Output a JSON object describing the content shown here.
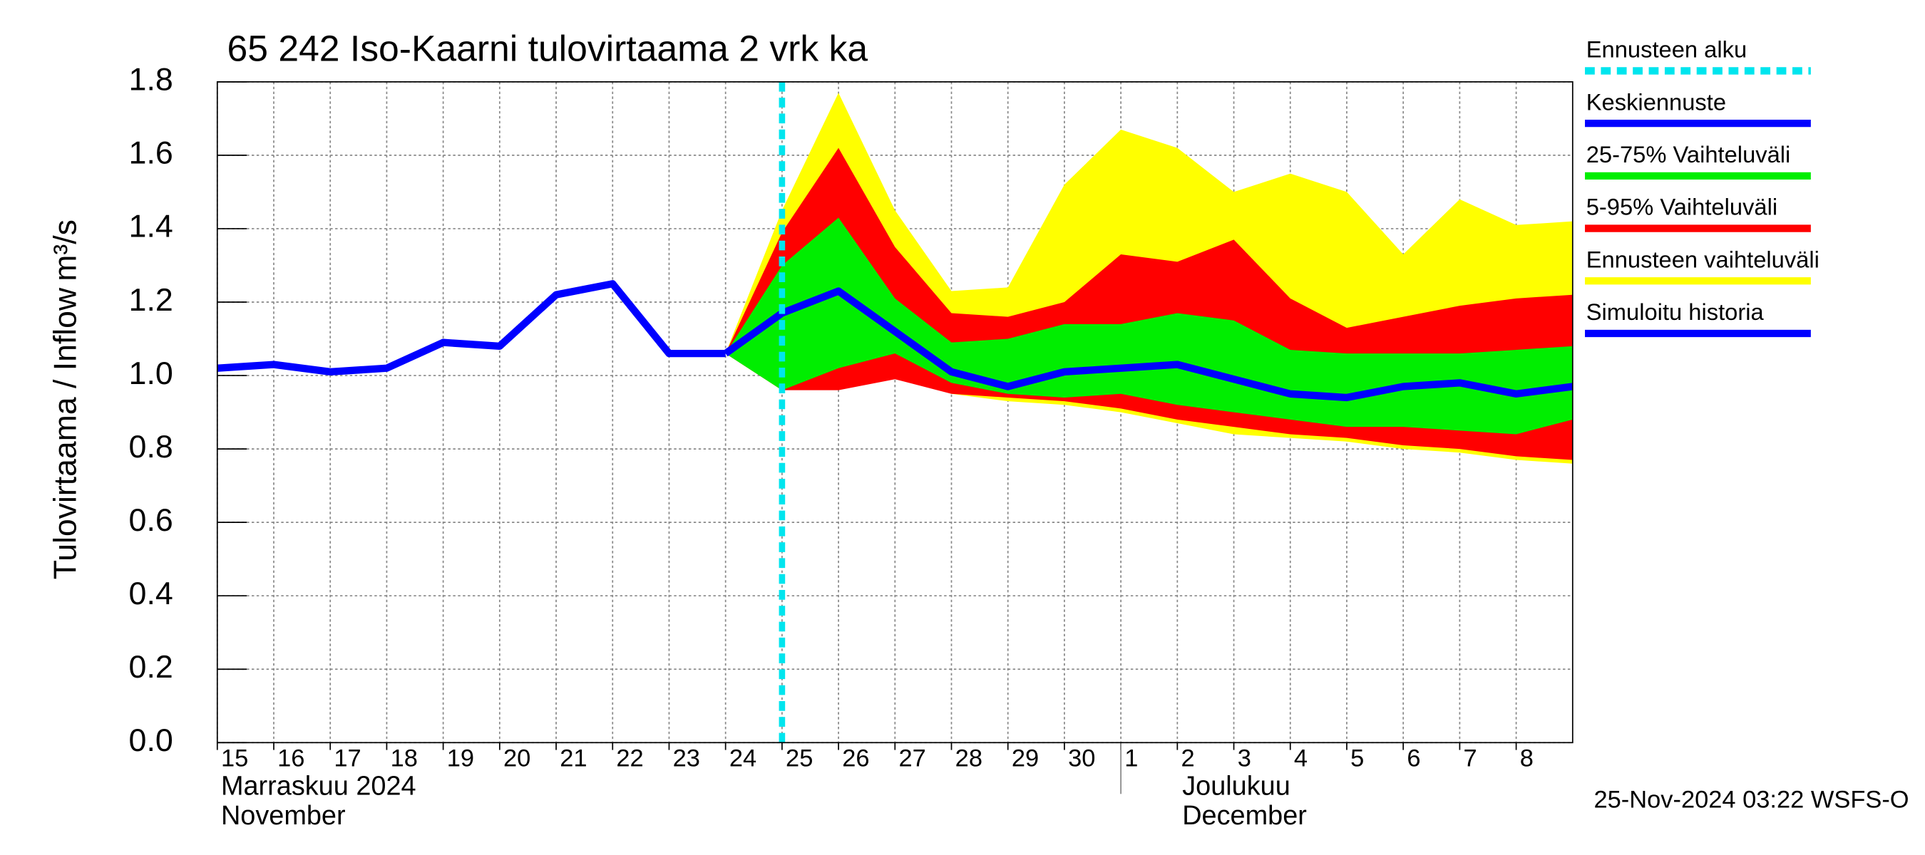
{
  "chart_data": {
    "type": "band-forecast",
    "title": "65 242 Iso-Kaarni tulovirtaama 2 vrk ka",
    "y_label": "Tulovirtaama / Inflow",
    "y_unit": "m³/s",
    "timestamp": "25-Nov-2024 03:22 WSFS-O",
    "xlim": [
      0,
      24
    ],
    "ylim": [
      0,
      1.8
    ],
    "yticks": [
      {
        "value": 0,
        "label": "0.0"
      },
      {
        "value": 0.2,
        "label": "0.2"
      },
      {
        "value": 0.4,
        "label": "0.4"
      },
      {
        "value": 0.6,
        "label": "0.6"
      },
      {
        "value": 0.8,
        "label": "0.8"
      },
      {
        "value": 1,
        "label": "1.0"
      },
      {
        "value": 1.2,
        "label": "1.2"
      },
      {
        "value": 1.4,
        "label": "1.4"
      },
      {
        "value": 1.6,
        "label": "1.6"
      },
      {
        "value": 1.8,
        "label": "1.8"
      }
    ],
    "xticks": [
      {
        "value": 0,
        "label": "15"
      },
      {
        "value": 1,
        "label": "16"
      },
      {
        "value": 2,
        "label": "17"
      },
      {
        "value": 3,
        "label": "18"
      },
      {
        "value": 4,
        "label": "19"
      },
      {
        "value": 5,
        "label": "20"
      },
      {
        "value": 6,
        "label": "21"
      },
      {
        "value": 7,
        "label": "22"
      },
      {
        "value": 8,
        "label": "23"
      },
      {
        "value": 9,
        "label": "24"
      },
      {
        "value": 10,
        "label": "25"
      },
      {
        "value": 11,
        "label": "26"
      },
      {
        "value": 12,
        "label": "27"
      },
      {
        "value": 13,
        "label": "28"
      },
      {
        "value": 14,
        "label": "29"
      },
      {
        "value": 15,
        "label": "30"
      },
      {
        "value": 16,
        "label": "1"
      },
      {
        "value": 17,
        "label": "2"
      },
      {
        "value": 18,
        "label": "3"
      },
      {
        "value": 19,
        "label": "4"
      },
      {
        "value": 20,
        "label": "5"
      },
      {
        "value": 21,
        "label": "6"
      },
      {
        "value": 22,
        "label": "7"
      },
      {
        "value": 23,
        "label": "8"
      }
    ],
    "month_ticks": [
      {
        "value": 0,
        "label": "Marraskuu 2024",
        "label_en": "November"
      },
      {
        "value": 16,
        "label": "Joulukuu",
        "label_en": "December"
      }
    ],
    "grid": true,
    "x": [
      0,
      1,
      2,
      3,
      4,
      5,
      6,
      7,
      8,
      9,
      10,
      11,
      12,
      13,
      14,
      15,
      16,
      17,
      18,
      19,
      20,
      21,
      22,
      23,
      24
    ],
    "series": [
      {
        "name": "Ennusteen alku",
        "kind": "vline",
        "color": "#00e5ee",
        "x": 10
      },
      {
        "name": "Keskiennuste",
        "kind": "line",
        "color": "#0000ff",
        "values": [
          null,
          null,
          null,
          null,
          null,
          null,
          null,
          null,
          null,
          1.06,
          1.17,
          1.23,
          1.12,
          1.01,
          0.97,
          1.01,
          1.02,
          1.03,
          0.99,
          0.95,
          0.94,
          0.97,
          0.98,
          0.95,
          0.97
        ]
      },
      {
        "name": "25-75% Vaihteluväli",
        "kind": "band",
        "color": "#00ee00",
        "high": [
          null,
          null,
          null,
          null,
          null,
          null,
          null,
          null,
          null,
          1.06,
          1.3,
          1.43,
          1.21,
          1.09,
          1.1,
          1.14,
          1.14,
          1.17,
          1.15,
          1.07,
          1.06,
          1.06,
          1.06,
          1.07,
          1.08
        ],
        "low": [
          null,
          null,
          null,
          null,
          null,
          null,
          null,
          null,
          null,
          1.06,
          0.96,
          1.02,
          1.06,
          0.98,
          0.95,
          0.94,
          0.95,
          0.92,
          0.9,
          0.88,
          0.86,
          0.86,
          0.85,
          0.84,
          0.88
        ]
      },
      {
        "name": "5-95% Vaihteluväli",
        "kind": "band",
        "color": "#ff0000",
        "high": [
          null,
          null,
          null,
          null,
          null,
          null,
          null,
          null,
          null,
          1.06,
          1.39,
          1.62,
          1.35,
          1.17,
          1.16,
          1.2,
          1.33,
          1.31,
          1.37,
          1.21,
          1.13,
          1.16,
          1.19,
          1.21,
          1.22
        ],
        "low": [
          null,
          null,
          null,
          null,
          null,
          null,
          null,
          null,
          null,
          1.06,
          0.96,
          0.96,
          0.99,
          0.95,
          0.94,
          0.93,
          0.91,
          0.88,
          0.86,
          0.84,
          0.83,
          0.81,
          0.8,
          0.78,
          0.77
        ]
      },
      {
        "name": "Ennusteen vaihteluväli",
        "kind": "band",
        "color": "#ffff00",
        "high": [
          null,
          null,
          null,
          null,
          null,
          null,
          null,
          null,
          null,
          1.06,
          1.45,
          1.77,
          1.45,
          1.23,
          1.24,
          1.52,
          1.67,
          1.62,
          1.5,
          1.55,
          1.5,
          1.33,
          1.48,
          1.41,
          1.42
        ],
        "low": [
          null,
          null,
          null,
          null,
          null,
          null,
          null,
          null,
          null,
          1.06,
          0.96,
          0.97,
          1.0,
          0.95,
          0.93,
          0.92,
          0.9,
          0.87,
          0.84,
          0.83,
          0.82,
          0.8,
          0.79,
          0.77,
          0.76
        ]
      },
      {
        "name": "Simuloitu historia",
        "kind": "line",
        "color": "#0000ff",
        "values": [
          1.02,
          1.03,
          1.01,
          1.02,
          1.09,
          1.08,
          1.22,
          1.25,
          1.06,
          1.06,
          null,
          null,
          null,
          null,
          null,
          null,
          null,
          null,
          null,
          null,
          null,
          null,
          null,
          null,
          null
        ]
      }
    ]
  }
}
